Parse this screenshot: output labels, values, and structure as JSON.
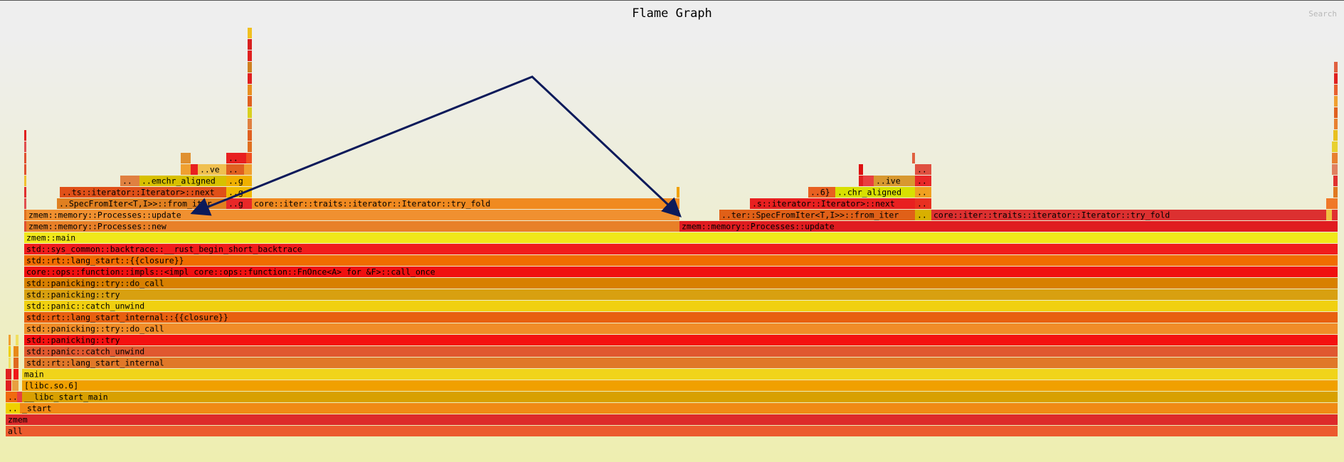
{
  "title": "Flame Graph",
  "search_label": "Search",
  "chart_data": {
    "type": "flamegraph",
    "title": "Flame Graph",
    "unit": "sample span (0-1880)",
    "annotation": "polyline arrow from the first zmem::memory::Processes::update frame to the second",
    "frames": [
      {
        "label": "all",
        "start": 8,
        "end": 1880,
        "depth": 0,
        "color": "#ec5a2e"
      },
      {
        "label": "zmem",
        "start": 8,
        "end": 1880,
        "depth": 1,
        "color": "#dd2a2a"
      },
      {
        "label": "..",
        "start": 8,
        "end": 28,
        "depth": 2,
        "color": "#f0d000"
      },
      {
        "label": "_start",
        "start": 28,
        "end": 1880,
        "depth": 2,
        "color": "#f08a14"
      },
      {
        "label": "..",
        "start": 8,
        "end": 24,
        "depth": 3,
        "color": "#f06a10"
      },
      {
        "label": "",
        "start": 24,
        "end": 31,
        "depth": 3,
        "color": "#e84040"
      },
      {
        "label": "__libc_start_main",
        "start": 31,
        "end": 1880,
        "depth": 3,
        "color": "#d8a000"
      },
      {
        "label": "",
        "start": 8,
        "end": 16,
        "depth": 4,
        "color": "#e02020"
      },
      {
        "label": "",
        "start": 17,
        "end": 26,
        "depth": 4,
        "color": "#e8a040"
      },
      {
        "label": "[libc.so.6]",
        "start": 31,
        "end": 1880,
        "depth": 4,
        "color": "#f0a000"
      },
      {
        "label": "",
        "start": 8,
        "end": 16,
        "depth": 5,
        "color": "#e02020"
      },
      {
        "label": "",
        "start": 19,
        "end": 26,
        "depth": 5,
        "color": "#f01818"
      },
      {
        "label": "main",
        "start": 31,
        "end": 1880,
        "depth": 5,
        "color": "#f0d41a"
      },
      {
        "label": "",
        "start": 12,
        "end": 15,
        "depth": 6,
        "color": "#f0e060"
      },
      {
        "label": "",
        "start": 19,
        "end": 26,
        "depth": 6,
        "color": "#e06820"
      },
      {
        "label": "std::rt::lang_start_internal",
        "start": 34,
        "end": 1880,
        "depth": 6,
        "color": "#e07828"
      },
      {
        "label": "",
        "start": 12,
        "end": 15,
        "depth": 7,
        "color": "#f0d000"
      },
      {
        "label": "",
        "start": 19,
        "end": 26,
        "depth": 7,
        "color": "#e88a18"
      },
      {
        "label": "std::panic::catch_unwind",
        "start": 34,
        "end": 1880,
        "depth": 7,
        "color": "#e05830"
      },
      {
        "label": "",
        "start": 12,
        "end": 15,
        "depth": 8,
        "color": "#f0a030"
      },
      {
        "label": "",
        "start": 22,
        "end": 26,
        "depth": 8,
        "color": "#f0e060"
      },
      {
        "label": "std::panicking::try",
        "start": 34,
        "end": 1880,
        "depth": 8,
        "color": "#f41010"
      },
      {
        "label": "std::panicking::try::do_call",
        "start": 34,
        "end": 1880,
        "depth": 9,
        "color": "#f08c28"
      },
      {
        "label": "std::rt::lang_start_internal::{{closure}}",
        "start": 34,
        "end": 1880,
        "depth": 10,
        "color": "#e86010"
      },
      {
        "label": "std::panic::catch_unwind",
        "start": 34,
        "end": 1880,
        "depth": 11,
        "color": "#f0d010"
      },
      {
        "label": "std::panicking::try",
        "start": 34,
        "end": 1880,
        "depth": 12,
        "color": "#d8a010"
      },
      {
        "label": "std::panicking::try::do_call",
        "start": 34,
        "end": 1880,
        "depth": 13,
        "color": "#d88000"
      },
      {
        "label": "core::ops::function::impls::<impl core::ops::function::FnOnce<A> for &F>::call_once",
        "start": 34,
        "end": 1880,
        "depth": 14,
        "color": "#f01010"
      },
      {
        "label": "std::rt::lang_start::{{closure}}",
        "start": 34,
        "end": 1880,
        "depth": 15,
        "color": "#f06c00"
      },
      {
        "label": "std::sys_common::backtrace::__rust_begin_short_backtrace",
        "start": 34,
        "end": 1880,
        "depth": 16,
        "color": "#f01c1c"
      },
      {
        "label": "zmem::main",
        "start": 34,
        "end": 1880,
        "depth": 17,
        "color": "#f0e81a"
      },
      {
        "label": "",
        "start": 34,
        "end": 37,
        "depth": 18,
        "color": "#e05030"
      },
      {
        "label": "zmem::memory::Processes::new",
        "start": 37,
        "end": 955,
        "depth": 18,
        "color": "#e88028"
      },
      {
        "label": "zmem::memory::Processes::update",
        "start": 955,
        "end": 1880,
        "depth": 18,
        "color": "#e01c20"
      },
      {
        "label": "",
        "start": 34,
        "end": 37,
        "depth": 19,
        "color": "#e07020"
      },
      {
        "label": "zmem::memory::Processes::update",
        "start": 37,
        "end": 955,
        "depth": 19,
        "color": "#f09030"
      },
      {
        "label": "..ter::SpecFromIter<T,I>>::from_iter",
        "start": 1011,
        "end": 1286,
        "depth": 19,
        "color": "#e06018"
      },
      {
        "label": "..",
        "start": 1286,
        "end": 1309,
        "depth": 19,
        "color": "#d8b000"
      },
      {
        "label": "core::iter::traits::iterator::Iterator::try_fold",
        "start": 1309,
        "end": 1864,
        "depth": 19,
        "color": "#dc3030"
      },
      {
        "label": "",
        "start": 1864,
        "end": 1872,
        "depth": 19,
        "color": "#f0c040"
      },
      {
        "label": "",
        "start": 1872,
        "end": 1880,
        "depth": 19,
        "color": "#e03030"
      },
      {
        "label": "",
        "start": 34,
        "end": 37,
        "depth": 20,
        "color": "#e05050"
      },
      {
        "label": "..SpecFromIter<T,I>>::from_iter",
        "start": 80,
        "end": 318,
        "depth": 20,
        "color": "#e08020"
      },
      {
        "label": "..g",
        "start": 318,
        "end": 354,
        "depth": 20,
        "color": "#e82828"
      },
      {
        "label": "core::iter::traits::iterator::Iterator::try_fold",
        "start": 354,
        "end": 955,
        "depth": 20,
        "color": "#f08a20"
      },
      {
        "label": ".s::iterator::Iterator>::next",
        "start": 1054,
        "end": 1286,
        "depth": 20,
        "color": "#e82020"
      },
      {
        "label": "..",
        "start": 1286,
        "end": 1309,
        "depth": 20,
        "color": "#e83020"
      },
      {
        "label": "",
        "start": 1864,
        "end": 1880,
        "depth": 20,
        "color": "#f07828"
      },
      {
        "label": "",
        "start": 34,
        "end": 37,
        "depth": 21,
        "color": "#e03030"
      },
      {
        "label": "..ts::iterator::Iterator>::next",
        "start": 84,
        "end": 318,
        "depth": 21,
        "color": "#e05018"
      },
      {
        "label": "..g",
        "start": 318,
        "end": 354,
        "depth": 21,
        "color": "#f0b800"
      },
      {
        "label": "",
        "start": 951,
        "end": 955,
        "depth": 21,
        "color": "#f0a000"
      },
      {
        "label": "..6}",
        "start": 1136,
        "end": 1174,
        "depth": 21,
        "color": "#e86020"
      },
      {
        "label": "..chr_aligned",
        "start": 1174,
        "end": 1286,
        "depth": 21,
        "color": "#d8e000"
      },
      {
        "label": "..",
        "start": 1286,
        "end": 1309,
        "depth": 21,
        "color": "#f0a020"
      },
      {
        "label": "",
        "start": 1874,
        "end": 1880,
        "depth": 21,
        "color": "#e07820"
      },
      {
        "label": "",
        "start": 34,
        "end": 37,
        "depth": 22,
        "color": "#f0c030"
      },
      {
        "label": "..",
        "start": 169,
        "end": 196,
        "depth": 22,
        "color": "#e08040"
      },
      {
        "label": "..emchr_aligned",
        "start": 196,
        "end": 318,
        "depth": 22,
        "color": "#d8c000"
      },
      {
        "label": "..g",
        "start": 318,
        "end": 354,
        "depth": 22,
        "color": "#f0b000"
      },
      {
        "label": "",
        "start": 1207,
        "end": 1213,
        "depth": 22,
        "color": "#e02020"
      },
      {
        "label": "",
        "start": 1213,
        "end": 1228,
        "depth": 22,
        "color": "#e84040"
      },
      {
        "label": "..ive",
        "start": 1228,
        "end": 1286,
        "depth": 22,
        "color": "#d89830"
      },
      {
        "label": "..",
        "start": 1286,
        "end": 1309,
        "depth": 22,
        "color": "#e82828"
      },
      {
        "label": "",
        "start": 1874,
        "end": 1880,
        "depth": 22,
        "color": "#e03030"
      },
      {
        "label": "",
        "start": 34,
        "end": 37,
        "depth": 23,
        "color": "#e05030"
      },
      {
        "label": "",
        "start": 254,
        "end": 268,
        "depth": 23,
        "color": "#f0a030"
      },
      {
        "label": "",
        "start": 268,
        "end": 278,
        "depth": 23,
        "color": "#e82020"
      },
      {
        "label": "..ve",
        "start": 278,
        "end": 318,
        "depth": 23,
        "color": "#f0c050"
      },
      {
        "label": "..",
        "start": 318,
        "end": 343,
        "depth": 23,
        "color": "#e06020"
      },
      {
        "label": "",
        "start": 343,
        "end": 354,
        "depth": 23,
        "color": "#f0a030"
      },
      {
        "label": "",
        "start": 1207,
        "end": 1213,
        "depth": 23,
        "color": "#dd1010"
      },
      {
        "label": "..",
        "start": 1286,
        "end": 1309,
        "depth": 23,
        "color": "#e05040"
      },
      {
        "label": "",
        "start": 1872,
        "end": 1880,
        "depth": 23,
        "color": "#e08060"
      },
      {
        "label": "",
        "start": 34,
        "end": 37,
        "depth": 24,
        "color": "#e05030"
      },
      {
        "label": "",
        "start": 254,
        "end": 268,
        "depth": 24,
        "color": "#e09030"
      },
      {
        "label": "..",
        "start": 318,
        "end": 346,
        "depth": 24,
        "color": "#e82020"
      },
      {
        "label": "",
        "start": 346,
        "end": 354,
        "depth": 24,
        "color": "#f05020"
      },
      {
        "label": "",
        "start": 1282,
        "end": 1286,
        "depth": 24,
        "color": "#e06040"
      },
      {
        "label": "",
        "start": 1872,
        "end": 1880,
        "depth": 24,
        "color": "#e88030"
      },
      {
        "label": "",
        "start": 34,
        "end": 37,
        "depth": 25,
        "color": "#e05050"
      },
      {
        "label": "",
        "start": 348,
        "end": 354,
        "depth": 25,
        "color": "#e07020"
      },
      {
        "label": "",
        "start": 1872,
        "end": 1880,
        "depth": 25,
        "color": "#e8d030"
      },
      {
        "label": "",
        "start": 34,
        "end": 37,
        "depth": 26,
        "color": "#e02020"
      },
      {
        "label": "",
        "start": 348,
        "end": 354,
        "depth": 26,
        "color": "#e06020"
      },
      {
        "label": "",
        "start": 1874,
        "end": 1880,
        "depth": 26,
        "color": "#e8c020"
      },
      {
        "label": "",
        "start": 348,
        "end": 354,
        "depth": 27,
        "color": "#e08040"
      },
      {
        "label": "",
        "start": 1875,
        "end": 1880,
        "depth": 27,
        "color": "#e88030"
      },
      {
        "label": "",
        "start": 348,
        "end": 354,
        "depth": 28,
        "color": "#d8d020"
      },
      {
        "label": "",
        "start": 1875,
        "end": 1880,
        "depth": 28,
        "color": "#e06020"
      },
      {
        "label": "",
        "start": 348,
        "end": 354,
        "depth": 29,
        "color": "#e06020"
      },
      {
        "label": "",
        "start": 1875,
        "end": 1880,
        "depth": 29,
        "color": "#f0a030"
      },
      {
        "label": "",
        "start": 348,
        "end": 354,
        "depth": 30,
        "color": "#e89020"
      },
      {
        "label": "",
        "start": 1875,
        "end": 1880,
        "depth": 30,
        "color": "#e86030"
      },
      {
        "label": "",
        "start": 348,
        "end": 354,
        "depth": 31,
        "color": "#e02020"
      },
      {
        "label": "",
        "start": 1875,
        "end": 1880,
        "depth": 31,
        "color": "#e02020"
      },
      {
        "label": "",
        "start": 348,
        "end": 354,
        "depth": 32,
        "color": "#d08020"
      },
      {
        "label": "",
        "start": 1875,
        "end": 1880,
        "depth": 32,
        "color": "#e06040"
      },
      {
        "label": "",
        "start": 348,
        "end": 354,
        "depth": 33,
        "color": "#e02020"
      },
      {
        "label": "",
        "start": 348,
        "end": 354,
        "depth": 34,
        "color": "#d82020"
      },
      {
        "label": "",
        "start": 348,
        "end": 354,
        "depth": 35,
        "color": "#f0c020"
      }
    ]
  }
}
